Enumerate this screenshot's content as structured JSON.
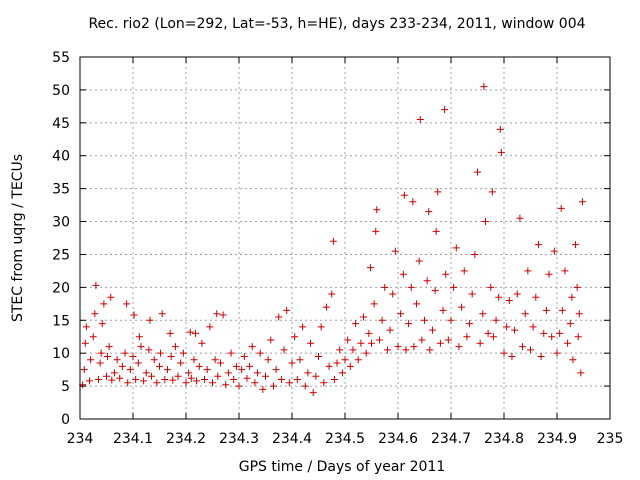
{
  "chart_data": {
    "type": "scatter",
    "title": "Rec. rio2 (Lon=292, Lat=-53, h=HE), days 233-234, 2011, window 004",
    "xlabel": "GPS time / Days of year 2011",
    "ylabel": "STEC from uqrg / TECUs",
    "xlim": [
      234,
      235
    ],
    "ylim": [
      0,
      55
    ],
    "x_ticks": [
      "234",
      "234.1",
      "234.2",
      "234.3",
      "234.4",
      "234.5",
      "234.6",
      "234.7",
      "234.8",
      "234.9",
      "235"
    ],
    "y_ticks": [
      "0",
      "5",
      "10",
      "15",
      "20",
      "25",
      "30",
      "35",
      "40",
      "45",
      "50",
      "55"
    ],
    "grid": true,
    "marker": "+",
    "color": "#cc0000",
    "points": [
      [
        234.005,
        5.2
      ],
      [
        234.008,
        7.5
      ],
      [
        234.01,
        11.5
      ],
      [
        234.012,
        14.0
      ],
      [
        234.018,
        5.8
      ],
      [
        234.02,
        9.0
      ],
      [
        234.025,
        12.5
      ],
      [
        234.028,
        16.0
      ],
      [
        234.03,
        20.3
      ],
      [
        234.035,
        6.0
      ],
      [
        234.038,
        8.5
      ],
      [
        234.04,
        10.0
      ],
      [
        234.042,
        14.5
      ],
      [
        234.045,
        17.5
      ],
      [
        234.05,
        6.5
      ],
      [
        234.052,
        9.5
      ],
      [
        234.055,
        11.0
      ],
      [
        234.058,
        18.5
      ],
      [
        234.06,
        5.9
      ],
      [
        234.065,
        7.0
      ],
      [
        234.07,
        9.0
      ],
      [
        234.075,
        6.2
      ],
      [
        234.08,
        8.0
      ],
      [
        234.085,
        10.0
      ],
      [
        234.088,
        17.5
      ],
      [
        234.09,
        5.5
      ],
      [
        234.095,
        7.5
      ],
      [
        234.1,
        9.5
      ],
      [
        234.102,
        15.8
      ],
      [
        234.105,
        6.0
      ],
      [
        234.11,
        8.5
      ],
      [
        234.112,
        12.5
      ],
      [
        234.115,
        11.0
      ],
      [
        234.12,
        5.8
      ],
      [
        234.125,
        7.0
      ],
      [
        234.13,
        10.5
      ],
      [
        234.132,
        15.0
      ],
      [
        234.135,
        6.5
      ],
      [
        234.14,
        9.0
      ],
      [
        234.145,
        5.5
      ],
      [
        234.15,
        8.0
      ],
      [
        234.152,
        10.0
      ],
      [
        234.155,
        16.0
      ],
      [
        234.16,
        6.0
      ],
      [
        234.165,
        7.5
      ],
      [
        234.17,
        13.0
      ],
      [
        234.172,
        9.5
      ],
      [
        234.175,
        5.9
      ],
      [
        234.18,
        11.0
      ],
      [
        234.185,
        6.5
      ],
      [
        234.19,
        8.5
      ],
      [
        234.195,
        10.0
      ],
      [
        234.2,
        5.5
      ],
      [
        234.205,
        7.0
      ],
      [
        234.208,
        13.2
      ],
      [
        234.21,
        6.2
      ],
      [
        234.215,
        9.0
      ],
      [
        234.218,
        13.0
      ],
      [
        234.22,
        5.8
      ],
      [
        234.225,
        8.0
      ],
      [
        234.23,
        11.5
      ],
      [
        234.235,
        6.0
      ],
      [
        234.24,
        7.5
      ],
      [
        234.245,
        14.0
      ],
      [
        234.25,
        5.5
      ],
      [
        234.255,
        9.0
      ],
      [
        234.258,
        16.0
      ],
      [
        234.26,
        6.5
      ],
      [
        234.265,
        8.5
      ],
      [
        234.27,
        15.8
      ],
      [
        234.275,
        5.2
      ],
      [
        234.28,
        7.0
      ],
      [
        234.285,
        10.0
      ],
      [
        234.29,
        6.0
      ],
      [
        234.295,
        8.0
      ],
      [
        234.3,
        5.0
      ],
      [
        234.305,
        7.5
      ],
      [
        234.31,
        9.5
      ],
      [
        234.315,
        6.2
      ],
      [
        234.32,
        8.0
      ],
      [
        234.325,
        11.0
      ],
      [
        234.33,
        5.5
      ],
      [
        234.335,
        7.0
      ],
      [
        234.34,
        10.0
      ],
      [
        234.345,
        4.5
      ],
      [
        234.35,
        6.5
      ],
      [
        234.355,
        9.0
      ],
      [
        234.36,
        12.0
      ],
      [
        234.365,
        5.0
      ],
      [
        234.37,
        7.5
      ],
      [
        234.375,
        15.5
      ],
      [
        234.38,
        6.0
      ],
      [
        234.385,
        10.5
      ],
      [
        234.39,
        16.5
      ],
      [
        234.395,
        5.5
      ],
      [
        234.4,
        8.5
      ],
      [
        234.405,
        12.5
      ],
      [
        234.41,
        6.0
      ],
      [
        234.415,
        9.0
      ],
      [
        234.42,
        14.0
      ],
      [
        234.425,
        5.0
      ],
      [
        234.43,
        7.0
      ],
      [
        234.435,
        11.5
      ],
      [
        234.44,
        4.0
      ],
      [
        234.445,
        6.5
      ],
      [
        234.45,
        9.5
      ],
      [
        234.455,
        14.0
      ],
      [
        234.46,
        5.5
      ],
      [
        234.465,
        17.0
      ],
      [
        234.47,
        8.0
      ],
      [
        234.475,
        19.0
      ],
      [
        234.478,
        27.0
      ],
      [
        234.48,
        6.0
      ],
      [
        234.485,
        8.5
      ],
      [
        234.49,
        10.5
      ],
      [
        234.495,
        7.0
      ],
      [
        234.5,
        9.0
      ],
      [
        234.505,
        12.0
      ],
      [
        234.51,
        8.0
      ],
      [
        234.515,
        10.5
      ],
      [
        234.52,
        14.5
      ],
      [
        234.525,
        9.0
      ],
      [
        234.53,
        11.5
      ],
      [
        234.535,
        15.5
      ],
      [
        234.54,
        10.0
      ],
      [
        234.545,
        13.0
      ],
      [
        234.548,
        23.0
      ],
      [
        234.55,
        11.5
      ],
      [
        234.555,
        17.5
      ],
      [
        234.558,
        28.5
      ],
      [
        234.56,
        31.8
      ],
      [
        234.565,
        12.0
      ],
      [
        234.57,
        15.0
      ],
      [
        234.575,
        20.0
      ],
      [
        234.58,
        10.5
      ],
      [
        234.585,
        13.5
      ],
      [
        234.59,
        19.0
      ],
      [
        234.595,
        25.5
      ],
      [
        234.6,
        11.0
      ],
      [
        234.605,
        16.0
      ],
      [
        234.61,
        22.0
      ],
      [
        234.612,
        34.0
      ],
      [
        234.615,
        10.5
      ],
      [
        234.62,
        14.5
      ],
      [
        234.625,
        20.0
      ],
      [
        234.628,
        33.0
      ],
      [
        234.63,
        11.0
      ],
      [
        234.635,
        17.5
      ],
      [
        234.64,
        24.0
      ],
      [
        234.642,
        45.5
      ],
      [
        234.645,
        12.0
      ],
      [
        234.65,
        15.0
      ],
      [
        234.655,
        21.0
      ],
      [
        234.658,
        31.5
      ],
      [
        234.66,
        10.5
      ],
      [
        234.665,
        13.5
      ],
      [
        234.67,
        19.5
      ],
      [
        234.672,
        28.5
      ],
      [
        234.675,
        34.5
      ],
      [
        234.68,
        11.5
      ],
      [
        234.685,
        16.5
      ],
      [
        234.688,
        47.0
      ],
      [
        234.69,
        22.0
      ],
      [
        234.695,
        12.0
      ],
      [
        234.7,
        15.0
      ],
      [
        234.705,
        20.0
      ],
      [
        234.71,
        26.0
      ],
      [
        234.715,
        11.0
      ],
      [
        234.72,
        17.0
      ],
      [
        234.725,
        22.5
      ],
      [
        234.73,
        12.5
      ],
      [
        234.735,
        14.5
      ],
      [
        234.74,
        19.0
      ],
      [
        234.745,
        25.0
      ],
      [
        234.75,
        37.5
      ],
      [
        234.755,
        11.5
      ],
      [
        234.76,
        16.0
      ],
      [
        234.762,
        50.5
      ],
      [
        234.765,
        30.0
      ],
      [
        234.77,
        13.0
      ],
      [
        234.775,
        20.0
      ],
      [
        234.778,
        34.5
      ],
      [
        234.78,
        12.5
      ],
      [
        234.785,
        15.0
      ],
      [
        234.79,
        18.5
      ],
      [
        234.793,
        44.0
      ],
      [
        234.795,
        40.5
      ],
      [
        234.8,
        10.0
      ],
      [
        234.805,
        14.0
      ],
      [
        234.81,
        18.0
      ],
      [
        234.815,
        9.5
      ],
      [
        234.82,
        13.5
      ],
      [
        234.825,
        19.0
      ],
      [
        234.83,
        30.5
      ],
      [
        234.835,
        11.0
      ],
      [
        234.84,
        16.0
      ],
      [
        234.845,
        22.5
      ],
      [
        234.85,
        10.5
      ],
      [
        234.855,
        14.0
      ],
      [
        234.86,
        18.5
      ],
      [
        234.865,
        26.5
      ],
      [
        234.87,
        9.5
      ],
      [
        234.875,
        13.0
      ],
      [
        234.88,
        16.5
      ],
      [
        234.885,
        22.0
      ],
      [
        234.89,
        12.5
      ],
      [
        234.895,
        25.5
      ],
      [
        234.9,
        10.0
      ],
      [
        234.905,
        13.0
      ],
      [
        234.908,
        32.0
      ],
      [
        234.91,
        16.5
      ],
      [
        234.915,
        22.5
      ],
      [
        234.92,
        11.5
      ],
      [
        234.925,
        14.5
      ],
      [
        234.928,
        18.5
      ],
      [
        234.93,
        9.0
      ],
      [
        234.935,
        26.5
      ],
      [
        234.938,
        20.0
      ],
      [
        234.94,
        12.5
      ],
      [
        234.942,
        16.0
      ],
      [
        234.945,
        7.0
      ],
      [
        234.948,
        33.0
      ]
    ]
  }
}
